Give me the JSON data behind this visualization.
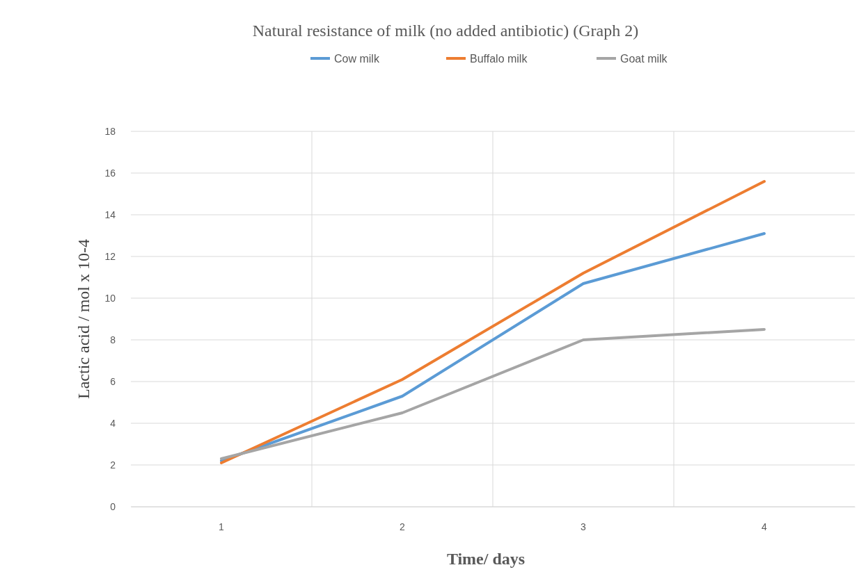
{
  "chart_data": {
    "type": "line",
    "title": "Natural resistance of milk (no added antibiotic) (Graph 2)",
    "xlabel": "Time/ days",
    "ylabel": "Lactic acid / mol x 10-4",
    "categories": [
      "1",
      "2",
      "3",
      "4"
    ],
    "series": [
      {
        "name": "Cow milk",
        "color": "#5b9bd5",
        "values": [
          2.2,
          5.3,
          10.7,
          13.1
        ]
      },
      {
        "name": "Buffalo milk",
        "color": "#ed7d31",
        "values": [
          2.1,
          6.1,
          11.2,
          15.6
        ]
      },
      {
        "name": "Goat milk",
        "color": "#a5a5a5",
        "values": [
          2.3,
          4.5,
          8.0,
          8.5
        ]
      }
    ],
    "ylim": [
      0,
      18
    ],
    "yticks": [
      0,
      2,
      4,
      6,
      8,
      10,
      12,
      14,
      16,
      18
    ],
    "grid": true,
    "legend": "top",
    "marker": "none",
    "line_style": "solid"
  }
}
